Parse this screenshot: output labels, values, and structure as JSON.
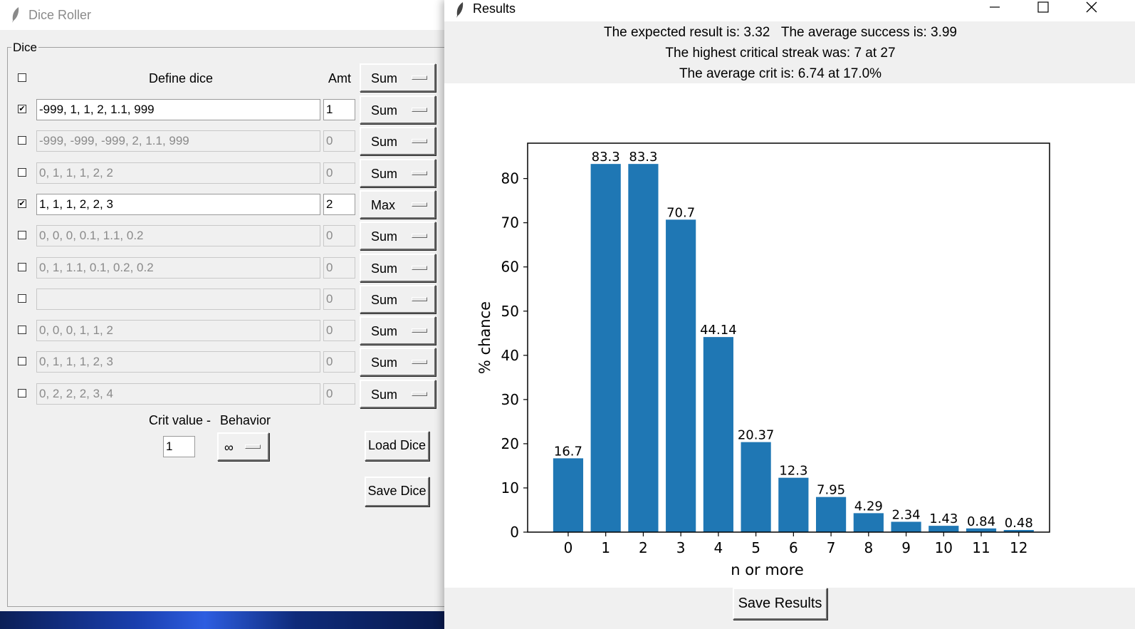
{
  "dice_window": {
    "title": "Dice Roller",
    "frame_label": "Dice",
    "headers": {
      "define": "Define dice",
      "amt": "Amt",
      "mode": "Sum"
    },
    "rows": [
      {
        "checked": true,
        "dice": "-999, 1, 1, 2, 1.1, 999",
        "amt": "1",
        "mode": "Sum"
      },
      {
        "checked": false,
        "dice": "-999, -999, -999, 2, 1.1, 999",
        "amt": "0",
        "mode": "Sum"
      },
      {
        "checked": false,
        "dice": "0, 1, 1, 1, 2, 2",
        "amt": "0",
        "mode": "Sum"
      },
      {
        "checked": true,
        "dice": "1, 1, 1, 2, 2, 3",
        "amt": "2",
        "mode": "Max"
      },
      {
        "checked": false,
        "dice": "0, 0, 0, 0.1, 1.1, 0.2",
        "amt": "0",
        "mode": "Sum"
      },
      {
        "checked": false,
        "dice": "0, 1, 1.1, 0.1, 0.2, 0.2",
        "amt": "0",
        "mode": "Sum"
      },
      {
        "checked": false,
        "dice": "",
        "amt": "0",
        "mode": "Sum"
      },
      {
        "checked": false,
        "dice": "0, 0, 0, 1, 1, 2",
        "amt": "0",
        "mode": "Sum"
      },
      {
        "checked": false,
        "dice": "0, 1, 1, 1, 2, 3",
        "amt": "0",
        "mode": "Sum"
      },
      {
        "checked": false,
        "dice": "0, 2, 2, 2, 3, 4",
        "amt": "0",
        "mode": "Sum"
      }
    ],
    "crit_label": "Crit value -",
    "behavior_label": "Behavior",
    "crit_value": "1",
    "behavior_value": "∞",
    "load_button": "Load Dice",
    "save_button": "Save Dice"
  },
  "results_window": {
    "title": "Results",
    "stat_line_1": "The expected result is: 3.32   The average success is: 3.99",
    "stat_line_2": "The highest critical streak was: 7 at 27",
    "stat_line_3": "The average crit is: 6.74 at 17.0%",
    "save_button": "Save Results"
  },
  "chart_data": {
    "type": "bar",
    "categories": [
      "0",
      "1",
      "2",
      "3",
      "4",
      "5",
      "6",
      "7",
      "8",
      "9",
      "10",
      "11",
      "12"
    ],
    "values": [
      16.7,
      83.3,
      83.3,
      70.7,
      44.14,
      20.37,
      12.3,
      7.95,
      4.29,
      2.34,
      1.43,
      0.84,
      0.48
    ],
    "value_labels": [
      "16.7",
      "83.3",
      "83.3",
      "70.7",
      "44.14",
      "20.37",
      "12.3",
      "7.95",
      "4.29",
      "2.34",
      "1.43",
      "0.84",
      "0.48"
    ],
    "xlabel": "n or more",
    "ylabel": "% chance",
    "ylim": [
      0,
      88
    ],
    "yticks": [
      0,
      10,
      20,
      30,
      40,
      50,
      60,
      70,
      80
    ],
    "bar_color": "#1f77b4"
  }
}
